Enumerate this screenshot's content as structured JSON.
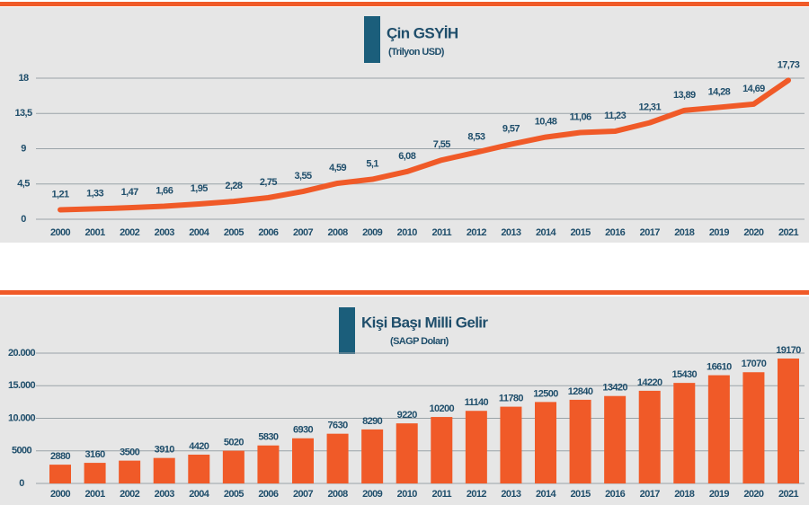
{
  "chart_data": [
    {
      "type": "line",
      "title": "Çin GSYİH",
      "subtitle": "(Trilyon USD)",
      "categories": [
        "2000",
        "2001",
        "2002",
        "2003",
        "2004",
        "2005",
        "2006",
        "2007",
        "2008",
        "2009",
        "2010",
        "2011",
        "2012",
        "2013",
        "2014",
        "2015",
        "2016",
        "2017",
        "2018",
        "2019",
        "2020",
        "2021"
      ],
      "values": [
        1.21,
        1.33,
        1.47,
        1.66,
        1.95,
        2.28,
        2.75,
        3.55,
        4.59,
        5.1,
        6.08,
        7.55,
        8.53,
        9.57,
        10.48,
        11.06,
        11.23,
        12.31,
        13.89,
        14.28,
        14.69,
        17.73
      ],
      "value_labels": [
        "1,21",
        "1,33",
        "1,47",
        "1,66",
        "1,95",
        "2,28",
        "2,75",
        "3,55",
        "4,59",
        "5,1",
        "6,08",
        "7,55",
        "8,53",
        "9,57",
        "10,48",
        "11,06",
        "11,23",
        "12,31",
        "13,89",
        "14,28",
        "14,69",
        "17,73"
      ],
      "color": "#f05a28",
      "ylim": [
        0,
        18
      ],
      "yticks": [
        0,
        {
          "value": 4.5,
          "label": "4,5"
        },
        9,
        {
          "value": 13.5,
          "label": "13,5"
        },
        18
      ],
      "grid": true
    },
    {
      "type": "bar",
      "title": "Kişi Başı Milli Gelir",
      "subtitle": "(SAGP Doları)",
      "categories": [
        "2000",
        "2001",
        "2002",
        "2003",
        "2004",
        "2005",
        "2006",
        "2007",
        "2008",
        "2009",
        "2010",
        "2011",
        "2012",
        "2013",
        "2014",
        "2015",
        "2016",
        "2017",
        "2018",
        "2019",
        "2020",
        "2021"
      ],
      "values": [
        2880,
        3160,
        3500,
        3910,
        4420,
        5020,
        5830,
        6930,
        7630,
        8290,
        9220,
        10200,
        11140,
        11780,
        12500,
        12840,
        13420,
        14220,
        15430,
        16610,
        17070,
        19170
      ],
      "color": "#f05a28",
      "ylim": [
        0,
        20000
      ],
      "yticks": [
        0,
        5000,
        {
          "value": 10000,
          "label": "10.000"
        },
        {
          "value": 15000,
          "label": "15.000"
        },
        {
          "value": 20000,
          "label": "20.000"
        }
      ],
      "grid": true
    }
  ]
}
